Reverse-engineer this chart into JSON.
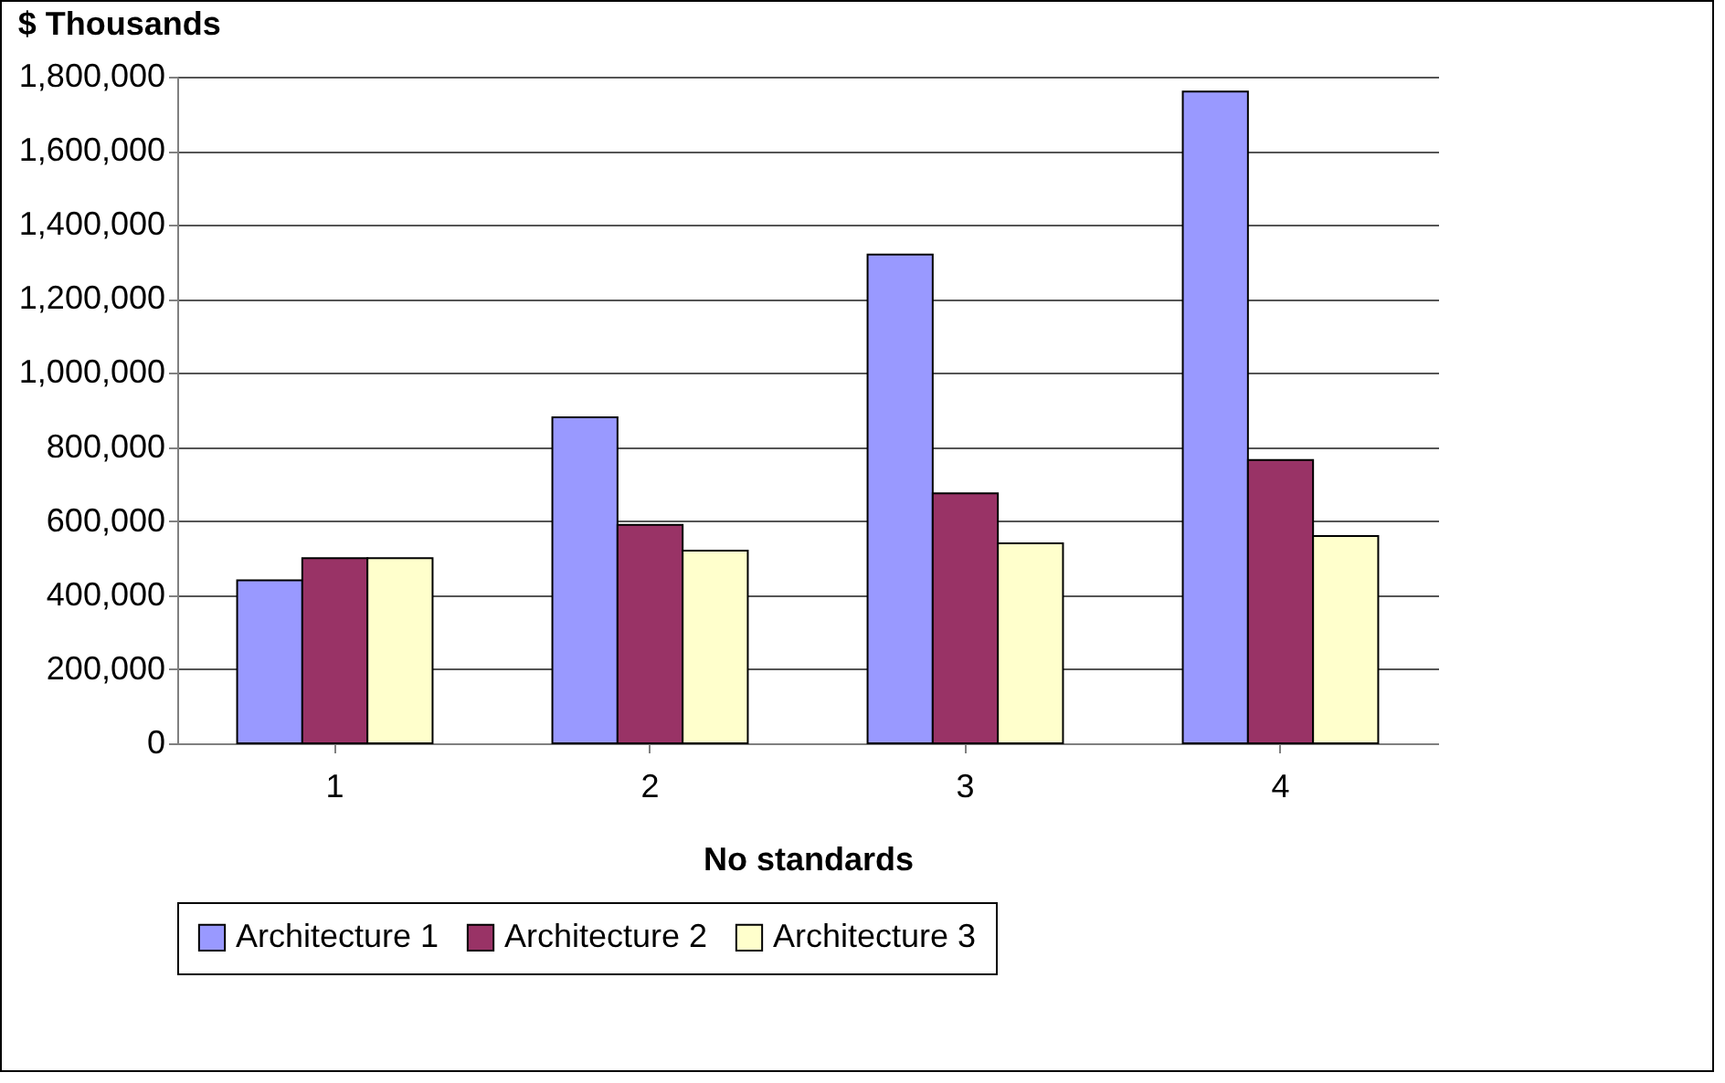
{
  "chart_data": {
    "type": "bar",
    "title": "$ Thousands",
    "xlabel": "No standards",
    "categories": [
      "1",
      "2",
      "3",
      "4"
    ],
    "series": [
      {
        "name": "Architecture 1",
        "color": "#9999ff",
        "values": [
          440000,
          880000,
          1320000,
          1760000
        ]
      },
      {
        "name": "Architecture 2",
        "color": "#993366",
        "values": [
          500000,
          590000,
          675000,
          765000
        ]
      },
      {
        "name": "Architecture 3",
        "color": "#ffffcc",
        "values": [
          500000,
          520000,
          540000,
          560000
        ]
      }
    ],
    "ylim": [
      0,
      1800000
    ],
    "yticks": [
      0,
      {
        "value": 200000,
        "label": "200,000"
      },
      {
        "value": 400000,
        "label": "400,000"
      },
      {
        "value": 600000,
        "label": "600,000"
      },
      {
        "value": 800000,
        "label": "800,000"
      },
      {
        "value": 1000000,
        "label": "1,000,000"
      },
      {
        "value": 1200000,
        "label": "1,200,000"
      },
      {
        "value": 1400000,
        "label": "1,400,000"
      },
      {
        "value": 1600000,
        "label": "1,600,000"
      },
      {
        "value": 1800000,
        "label": "1,800,000"
      }
    ],
    "grid": "y",
    "legend": "bottom"
  }
}
